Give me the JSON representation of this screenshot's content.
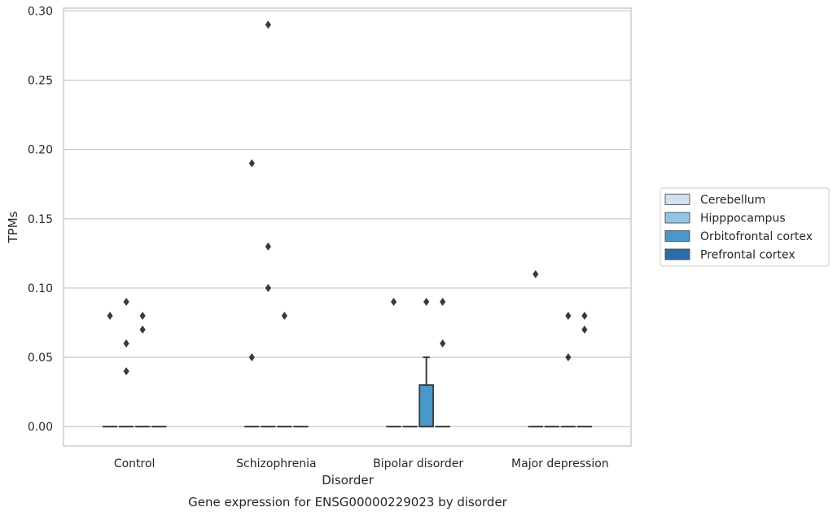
{
  "chart_data": {
    "type": "box",
    "title": "Gene expression for ENSG00000229023 by disorder",
    "xlabel": "Disorder",
    "ylabel": "TPMs",
    "ylim": [
      -0.014,
      0.302
    ],
    "yticks": [
      "0.00",
      "0.05",
      "0.10",
      "0.15",
      "0.20",
      "0.25",
      "0.30"
    ],
    "ytick_values": [
      0,
      0.05,
      0.1,
      0.15,
      0.2,
      0.25,
      0.3
    ],
    "grid": "horizontal",
    "legend_placement": "right",
    "categories": [
      "Control",
      "Schizophrenia",
      "Bipolar disorder",
      "Major depression"
    ],
    "series": [
      {
        "name": "Cerebellum",
        "color": "#d0e1f2",
        "boxes": [
          {
            "q1": 0,
            "median": 0,
            "q3": 0,
            "whisker_low": 0,
            "whisker_high": 0,
            "outliers": [
              0.08
            ]
          },
          {
            "q1": 0,
            "median": 0,
            "q3": 0,
            "whisker_low": 0,
            "whisker_high": 0,
            "outliers": [
              0.19,
              0.05
            ]
          },
          {
            "q1": 0,
            "median": 0,
            "q3": 0,
            "whisker_low": 0,
            "whisker_high": 0,
            "outliers": [
              0.09
            ]
          },
          {
            "q1": 0,
            "median": 0,
            "q3": 0,
            "whisker_low": 0,
            "whisker_high": 0,
            "outliers": [
              0.11
            ]
          }
        ]
      },
      {
        "name": "Hipppocampus",
        "color": "#94c4df",
        "boxes": [
          {
            "q1": 0,
            "median": 0,
            "q3": 0,
            "whisker_low": 0,
            "whisker_high": 0,
            "outliers": [
              0.09,
              0.06,
              0.04
            ]
          },
          {
            "q1": 0,
            "median": 0,
            "q3": 0,
            "whisker_low": 0,
            "whisker_high": 0,
            "outliers": [
              0.29,
              0.13,
              0.1
            ]
          },
          {
            "q1": 0,
            "median": 0,
            "q3": 0,
            "whisker_low": 0,
            "whisker_high": 0,
            "outliers": []
          },
          {
            "q1": 0,
            "median": 0,
            "q3": 0,
            "whisker_low": 0,
            "whisker_high": 0,
            "outliers": []
          }
        ]
      },
      {
        "name": "Orbitofrontal cortex",
        "color": "#4a98c9",
        "boxes": [
          {
            "q1": 0,
            "median": 0,
            "q3": 0,
            "whisker_low": 0,
            "whisker_high": 0,
            "outliers": [
              0.08,
              0.07
            ]
          },
          {
            "q1": 0,
            "median": 0,
            "q3": 0,
            "whisker_low": 0,
            "whisker_high": 0,
            "outliers": [
              0.08
            ]
          },
          {
            "q1": 0,
            "median": 0,
            "q3": 0.03,
            "whisker_low": 0,
            "whisker_high": 0.05,
            "outliers": [
              0.09
            ]
          },
          {
            "q1": 0,
            "median": 0,
            "q3": 0,
            "whisker_low": 0,
            "whisker_high": 0,
            "outliers": [
              0.08,
              0.05
            ]
          }
        ]
      },
      {
        "name": "Prefrontal cortex",
        "color": "#2e6ea8",
        "boxes": [
          {
            "q1": 0,
            "median": 0,
            "q3": 0,
            "whisker_low": 0,
            "whisker_high": 0,
            "outliers": []
          },
          {
            "q1": 0,
            "median": 0,
            "q3": 0,
            "whisker_low": 0,
            "whisker_high": 0,
            "outliers": []
          },
          {
            "q1": 0,
            "median": 0,
            "q3": 0,
            "whisker_low": 0,
            "whisker_high": 0,
            "outliers": [
              0.09,
              0.06
            ]
          },
          {
            "q1": 0,
            "median": 0,
            "q3": 0,
            "whisker_low": 0,
            "whisker_high": 0,
            "outliers": [
              0.08,
              0.07
            ]
          }
        ]
      }
    ],
    "colors": {
      "grid": "#cccccc",
      "frame": "#cccccc",
      "box_edge": "#3a3a3a",
      "outlier": "#3a3a3a"
    }
  }
}
